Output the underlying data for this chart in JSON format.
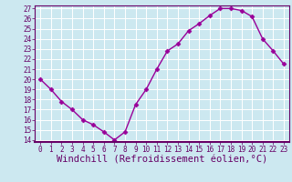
{
  "x": [
    0,
    1,
    2,
    3,
    4,
    5,
    6,
    7,
    8,
    9,
    10,
    11,
    12,
    13,
    14,
    15,
    16,
    17,
    18,
    19,
    20,
    21,
    22,
    23
  ],
  "y": [
    20.0,
    19.0,
    17.8,
    17.0,
    16.0,
    15.5,
    14.8,
    14.0,
    14.8,
    17.5,
    19.0,
    21.0,
    22.8,
    23.5,
    24.8,
    25.5,
    26.3,
    27.0,
    27.0,
    26.8,
    26.2,
    24.0,
    22.8,
    21.5
  ],
  "line_color": "#990099",
  "marker": "D",
  "marker_size": 2.5,
  "xlabel": "Windchill (Refroidissement éolien,°C)",
  "xlabel_color": "#660066",
  "ylim": [
    14,
    27
  ],
  "xlim": [
    -0.5,
    23.5
  ],
  "yticks": [
    14,
    15,
    16,
    17,
    18,
    19,
    20,
    21,
    22,
    23,
    24,
    25,
    26,
    27
  ],
  "xticks": [
    0,
    1,
    2,
    3,
    4,
    5,
    6,
    7,
    8,
    9,
    10,
    11,
    12,
    13,
    14,
    15,
    16,
    17,
    18,
    19,
    20,
    21,
    22,
    23
  ],
  "bg_color": "#cce8f0",
  "grid_color": "#aad4e0",
  "tick_color": "#660066",
  "tick_fontsize": 5.5,
  "xlabel_fontsize": 7.5,
  "linewidth": 1.0
}
